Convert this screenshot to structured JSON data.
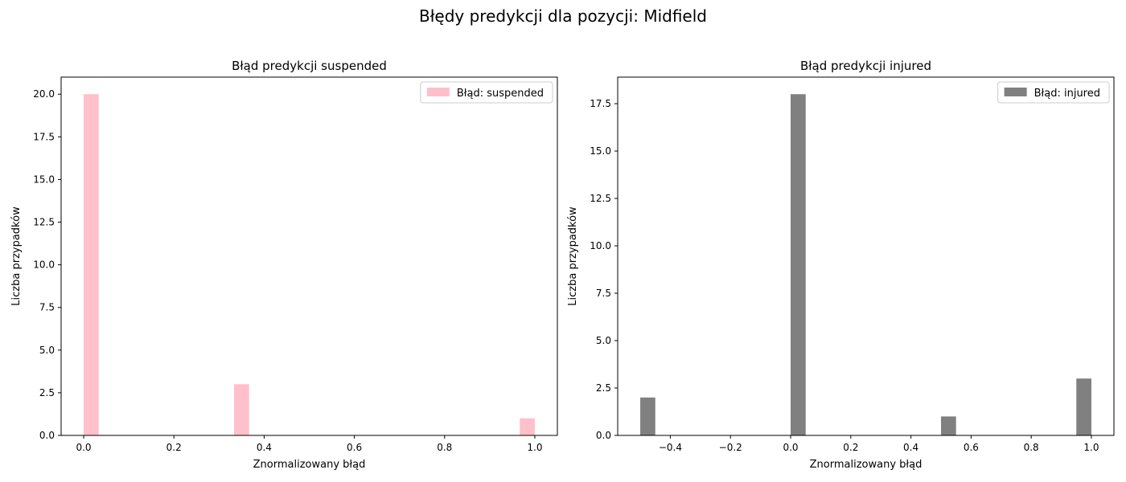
{
  "figure": {
    "title": "Błędy predykcji dla pozycji: Midfield"
  },
  "chart_data": [
    {
      "type": "bar",
      "title": "Błąd predykcji suspended",
      "xlabel": "Znormalizowany błąd",
      "ylabel": "Liczba przypadków",
      "xlim": [
        -0.05,
        1.05
      ],
      "ylim": [
        0,
        21
      ],
      "xticks": [
        0.0,
        0.2,
        0.4,
        0.6,
        0.8,
        1.0
      ],
      "xtick_labels": [
        "0.0",
        "0.2",
        "0.4",
        "0.6",
        "0.8",
        "1.0"
      ],
      "yticks": [
        0,
        2.5,
        5,
        7.5,
        10,
        12.5,
        15,
        17.5,
        20
      ],
      "ytick_labels": [
        "0.0",
        "2.5",
        "5.0",
        "7.5",
        "10.0",
        "12.5",
        "15.0",
        "17.5",
        "20.0"
      ],
      "bin_width": 0.0333,
      "bars": [
        {
          "x": 0.0,
          "value": 20
        },
        {
          "x": 0.3333,
          "value": 3
        },
        {
          "x": 0.9667,
          "value": 1
        }
      ],
      "color": "#ffc0cb",
      "legend": {
        "label": "Błąd: suspended",
        "placement": "top-right"
      },
      "grid": false
    },
    {
      "type": "bar",
      "title": "Błąd predykcji injured",
      "xlabel": "Znormalizowany błąd",
      "ylabel": "Liczba przypadków",
      "xlim": [
        -0.575,
        1.075
      ],
      "ylim": [
        0,
        18.9
      ],
      "xticks": [
        -0.4,
        -0.2,
        0.0,
        0.2,
        0.4,
        0.6,
        0.8,
        1.0
      ],
      "xtick_labels": [
        "−0.4",
        "−0.2",
        "0.0",
        "0.2",
        "0.4",
        "0.6",
        "0.8",
        "1.0"
      ],
      "yticks": [
        0,
        2.5,
        5,
        7.5,
        10,
        12.5,
        15,
        17.5
      ],
      "ytick_labels": [
        "0.0",
        "2.5",
        "5.0",
        "7.5",
        "10.0",
        "12.5",
        "15.0",
        "17.5"
      ],
      "bin_width": 0.05,
      "bars": [
        {
          "x": -0.5,
          "value": 2
        },
        {
          "x": 0.0,
          "value": 18
        },
        {
          "x": 0.5,
          "value": 1
        },
        {
          "x": 0.95,
          "value": 3
        }
      ],
      "color": "#808080",
      "legend": {
        "label": "Błąd: injured",
        "placement": "top-right"
      },
      "grid": false
    }
  ]
}
